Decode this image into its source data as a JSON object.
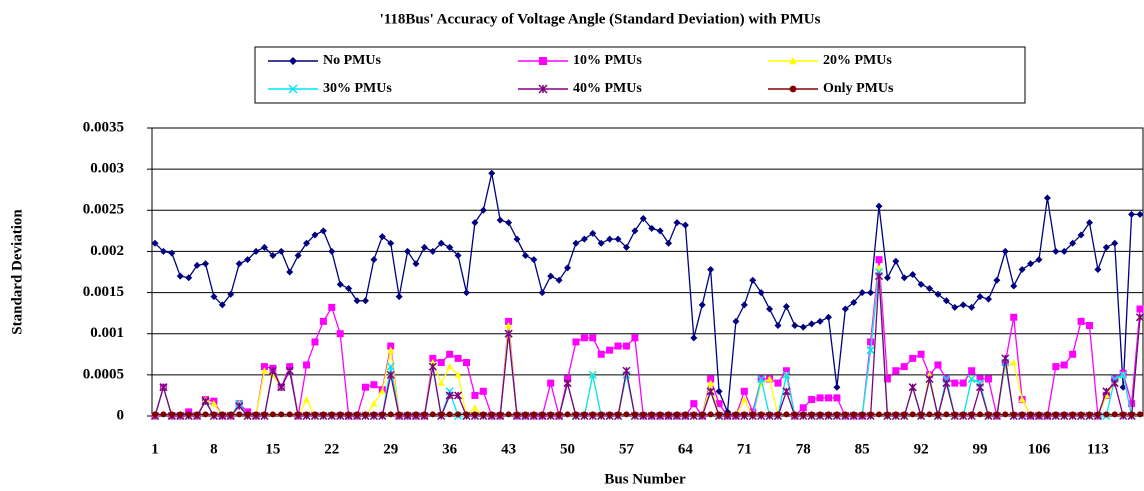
{
  "chart_data": {
    "type": "line",
    "title": "'118Bus' Accuracy of Voltage Angle (Standard Deviation) with PMUs",
    "x_label": "Bus Number",
    "y_label": "Standard Deviation",
    "categories": [
      1,
      null,
      null,
      null,
      null,
      null,
      null,
      8,
      null,
      null,
      null,
      null,
      null,
      null,
      15,
      null,
      null,
      null,
      null,
      null,
      null,
      22,
      null,
      null,
      null,
      null,
      null,
      null,
      29,
      null,
      null,
      null,
      null,
      null,
      null,
      36,
      null,
      null,
      null,
      null,
      null,
      null,
      43,
      null,
      null,
      null,
      null,
      null,
      null,
      50,
      null,
      null,
      null,
      null,
      null,
      null,
      57,
      null,
      null,
      null,
      null,
      null,
      null,
      64,
      null,
      null,
      null,
      null,
      null,
      null,
      71,
      null,
      null,
      null,
      null,
      null,
      null,
      78,
      null,
      null,
      null,
      null,
      null,
      null,
      85,
      null,
      null,
      null,
      null,
      null,
      null,
      92,
      null,
      null,
      null,
      null,
      null,
      null,
      99,
      null,
      null,
      null,
      null,
      null,
      null,
      106,
      null,
      null,
      null,
      null,
      null,
      null,
      113,
      null,
      null,
      null,
      null,
      null
    ],
    "ylim": [
      0,
      0.0035
    ],
    "yticks": [
      0,
      0.0005,
      0.001,
      0.0015,
      0.002,
      0.0025,
      0.003,
      0.0035
    ],
    "grid": true,
    "legend": "top",
    "series": [
      {
        "name": "No PMUs",
        "color": "#000080",
        "marker": "diamond",
        "values": [
          0.0021,
          0.002,
          0.00198,
          0.0017,
          0.00168,
          0.00183,
          0.00185,
          0.00145,
          0.00135,
          0.00148,
          0.00185,
          0.0019,
          0.002,
          0.00205,
          0.00195,
          0.002,
          0.00175,
          0.00195,
          0.0021,
          0.0022,
          0.00225,
          0.002,
          0.0016,
          0.00155,
          0.0014,
          0.0014,
          0.0019,
          0.00218,
          0.0021,
          0.00145,
          0.002,
          0.00185,
          0.00205,
          0.002,
          0.0021,
          0.00205,
          0.00195,
          0.0015,
          0.00235,
          0.0025,
          0.00295,
          0.00238,
          0.00235,
          0.00215,
          0.00195,
          0.0019,
          0.0015,
          0.0017,
          0.00165,
          0.0018,
          0.0021,
          0.00215,
          0.00222,
          0.0021,
          0.00215,
          0.00215,
          0.00205,
          0.00225,
          0.0024,
          0.00228,
          0.00225,
          0.0021,
          0.00235,
          0.00232,
          0.00095,
          0.00135,
          0.00178,
          0.0003,
          5e-05,
          0.00115,
          0.00135,
          0.00165,
          0.0015,
          0.0013,
          0.0011,
          0.00133,
          0.0011,
          0.00108,
          0.00112,
          0.00115,
          0.0012,
          0.00035,
          0.0013,
          0.00138,
          0.0015,
          0.0015,
          0.00255,
          0.00168,
          0.00188,
          0.00168,
          0.00172,
          0.0016,
          0.00155,
          0.00148,
          0.0014,
          0.00132,
          0.00135,
          0.00132,
          0.00145,
          0.00142,
          0.00165,
          0.002,
          0.00158,
          0.00178,
          0.00185,
          0.0019,
          0.00265,
          0.002,
          0.002,
          0.0021,
          0.0022,
          0.00235,
          0.00178,
          0.00205,
          0.0021,
          0.00035,
          0.00245,
          0.00245
        ]
      },
      {
        "name": "10% PMUs",
        "color": "#ff00ff",
        "marker": "square",
        "values": [
          0,
          0.00035,
          0,
          0,
          5e-05,
          0,
          0.0002,
          0.00018,
          0,
          0,
          0.00015,
          5e-05,
          0,
          0.0006,
          0.00058,
          0.00035,
          0.0006,
          0,
          0.00062,
          0.0009,
          0.00115,
          0.00132,
          0.001,
          0,
          0,
          0.00035,
          0.00038,
          0.00032,
          0.00085,
          0,
          0,
          0,
          0,
          0.0007,
          0.00065,
          0.00075,
          0.0007,
          0.00065,
          0.00025,
          0.0003,
          0,
          0,
          0.00115,
          0,
          0,
          0,
          0,
          0.0004,
          0,
          0.00045,
          0.0009,
          0.00095,
          0.00095,
          0.00075,
          0.0008,
          0.00085,
          0.00085,
          0.00095,
          0,
          0,
          0,
          0,
          0,
          0,
          0.00015,
          0,
          0.00045,
          0.00015,
          0,
          0,
          0.0003,
          5e-05,
          0.00045,
          0.00045,
          0.0004,
          0.00055,
          0,
          0.0001,
          0.0002,
          0.00022,
          0.00022,
          0.00022,
          0,
          0,
          0,
          0.0009,
          0.0019,
          0.00045,
          0.00055,
          0.0006,
          0.0007,
          0.00075,
          0.0005,
          0.00062,
          0.00045,
          0.0004,
          0.0004,
          0.00055,
          0.00045,
          0.00045,
          0,
          0.00065,
          0.0012,
          0.0002,
          0,
          0,
          0,
          0.0006,
          0.00062,
          0.00075,
          0.00115,
          0.0011,
          0,
          0.00025,
          0.00045,
          0.00052,
          0.00015,
          0.0013
        ]
      },
      {
        "name": "20% PMUs",
        "color": "#ffff00",
        "marker": "triangle",
        "values": [
          0,
          0.00035,
          0,
          0,
          0,
          0,
          0.0002,
          0.00015,
          0,
          0,
          0.00015,
          0,
          0,
          0.00055,
          0.0005,
          0.00035,
          0.00055,
          0,
          0.0002,
          0,
          0,
          0,
          0,
          0,
          0,
          0,
          0.00015,
          0.0003,
          0.0008,
          0,
          0,
          0,
          0,
          0.00065,
          0.0004,
          0.0006,
          0.0005,
          0,
          0.0001,
          0,
          0,
          0,
          0.0011,
          0,
          0,
          0,
          0,
          0,
          0,
          0.0004,
          0,
          0,
          0.0005,
          0,
          0,
          0,
          0.0005,
          0,
          0,
          0,
          0,
          0,
          0,
          0,
          0,
          0,
          0.0004,
          0,
          0,
          0,
          0.0002,
          0,
          0.0004,
          0.00045,
          0,
          0.0005,
          0,
          0,
          0,
          0,
          0,
          0,
          0,
          0,
          0,
          0.0008,
          0.0018,
          0,
          0,
          0,
          0.00035,
          0,
          0.0005,
          0,
          0.0004,
          0,
          0,
          0.00045,
          0.0004,
          0,
          0,
          0.0006,
          0.00065,
          0.0002,
          0,
          0,
          0,
          0,
          0,
          0,
          0,
          0,
          0,
          0.00025,
          0.0004,
          0.0005,
          0,
          0.0012
        ]
      },
      {
        "name": "30% PMUs",
        "color": "#00e5ff",
        "marker": "x",
        "values": [
          0,
          0.00035,
          0,
          0,
          0,
          0,
          0.00018,
          0,
          0,
          0,
          0.00015,
          0,
          0,
          0,
          0.00055,
          0.00035,
          0.00055,
          0,
          0,
          0,
          0,
          0,
          0,
          0,
          0,
          0,
          0,
          0,
          0.0006,
          0,
          0,
          0,
          0,
          0.0006,
          0,
          0.0003,
          0,
          0,
          0,
          0,
          0,
          0,
          0.001,
          0,
          0,
          0,
          0,
          0,
          0,
          0.0004,
          0,
          0,
          0.0005,
          0,
          0,
          0,
          0.0005,
          0,
          0,
          0,
          0,
          0,
          0,
          0,
          0,
          0,
          0.0003,
          0,
          0,
          0,
          0,
          0,
          0.00045,
          0,
          0,
          0.0005,
          0,
          0,
          0,
          0,
          0,
          0,
          0,
          0,
          0,
          0.0008,
          0.00175,
          0,
          0,
          0,
          0.00035,
          0,
          0.00045,
          0,
          0.00045,
          0,
          0,
          0.00045,
          0.0004,
          0,
          0,
          0.00065,
          0,
          0,
          0,
          0,
          0,
          0,
          0,
          0,
          0,
          0,
          0,
          0,
          0.00045,
          0.0005,
          0,
          0.0012
        ]
      },
      {
        "name": "40% PMUs",
        "color": "#800080",
        "marker": "star",
        "values": [
          0,
          0.00035,
          0,
          0,
          0,
          0,
          0.00018,
          0,
          0,
          0,
          0.00012,
          0,
          0,
          0,
          0.00055,
          0.00035,
          0.00055,
          0,
          0,
          0,
          0,
          0,
          0,
          0,
          0,
          0,
          0,
          0,
          0.0005,
          0,
          0,
          0,
          0,
          0.0006,
          0,
          0.00025,
          0.00025,
          0,
          0,
          0,
          0,
          0,
          0.001,
          0,
          0,
          0,
          0,
          0,
          0,
          0.0004,
          0,
          0,
          0,
          0,
          0,
          0,
          0.00055,
          0,
          0,
          0,
          0,
          0,
          0,
          0,
          0,
          0,
          0.0003,
          0,
          0,
          0,
          0,
          0,
          0,
          0,
          0,
          0.0003,
          0,
          0,
          0,
          0,
          0,
          0,
          0,
          0,
          0,
          0,
          0.0017,
          0,
          0,
          0,
          0.00035,
          0,
          0.00045,
          0,
          0.0004,
          0,
          0,
          0,
          0.00035,
          0,
          0,
          0.0007,
          0,
          0,
          0,
          0,
          0,
          0,
          0,
          0,
          0,
          0,
          0,
          0.0003,
          0.0004,
          0,
          0,
          0.0012
        ]
      },
      {
        "name": "Only PMUs",
        "color": "#800000",
        "marker": "circle",
        "values": [
          2e-05,
          2e-05,
          2e-05,
          2e-05,
          2e-05,
          2e-05,
          2e-05,
          2e-05,
          2e-05,
          2e-05,
          2e-05,
          2e-05,
          2e-05,
          2e-05,
          2e-05,
          2e-05,
          2e-05,
          2e-05,
          2e-05,
          2e-05,
          2e-05,
          2e-05,
          2e-05,
          2e-05,
          2e-05,
          2e-05,
          2e-05,
          2e-05,
          2e-05,
          2e-05,
          2e-05,
          2e-05,
          2e-05,
          2e-05,
          2e-05,
          2e-05,
          2e-05,
          2e-05,
          2e-05,
          2e-05,
          2e-05,
          2e-05,
          2e-05,
          2e-05,
          2e-05,
          2e-05,
          2e-05,
          2e-05,
          2e-05,
          2e-05,
          2e-05,
          2e-05,
          2e-05,
          2e-05,
          2e-05,
          2e-05,
          2e-05,
          2e-05,
          2e-05,
          2e-05,
          2e-05,
          2e-05,
          2e-05,
          2e-05,
          2e-05,
          2e-05,
          2e-05,
          2e-05,
          2e-05,
          2e-05,
          2e-05,
          2e-05,
          2e-05,
          2e-05,
          2e-05,
          2e-05,
          2e-05,
          2e-05,
          2e-05,
          2e-05,
          2e-05,
          2e-05,
          2e-05,
          2e-05,
          2e-05,
          2e-05,
          2e-05,
          2e-05,
          2e-05,
          2e-05,
          2e-05,
          2e-05,
          2e-05,
          2e-05,
          2e-05,
          2e-05,
          2e-05,
          2e-05,
          2e-05,
          2e-05,
          2e-05,
          2e-05,
          2e-05,
          2e-05,
          2e-05,
          2e-05,
          2e-05,
          2e-05,
          2e-05,
          2e-05,
          2e-05,
          2e-05,
          2e-05,
          2e-05,
          2e-05,
          2e-05,
          2e-05,
          2e-05
        ]
      }
    ]
  }
}
